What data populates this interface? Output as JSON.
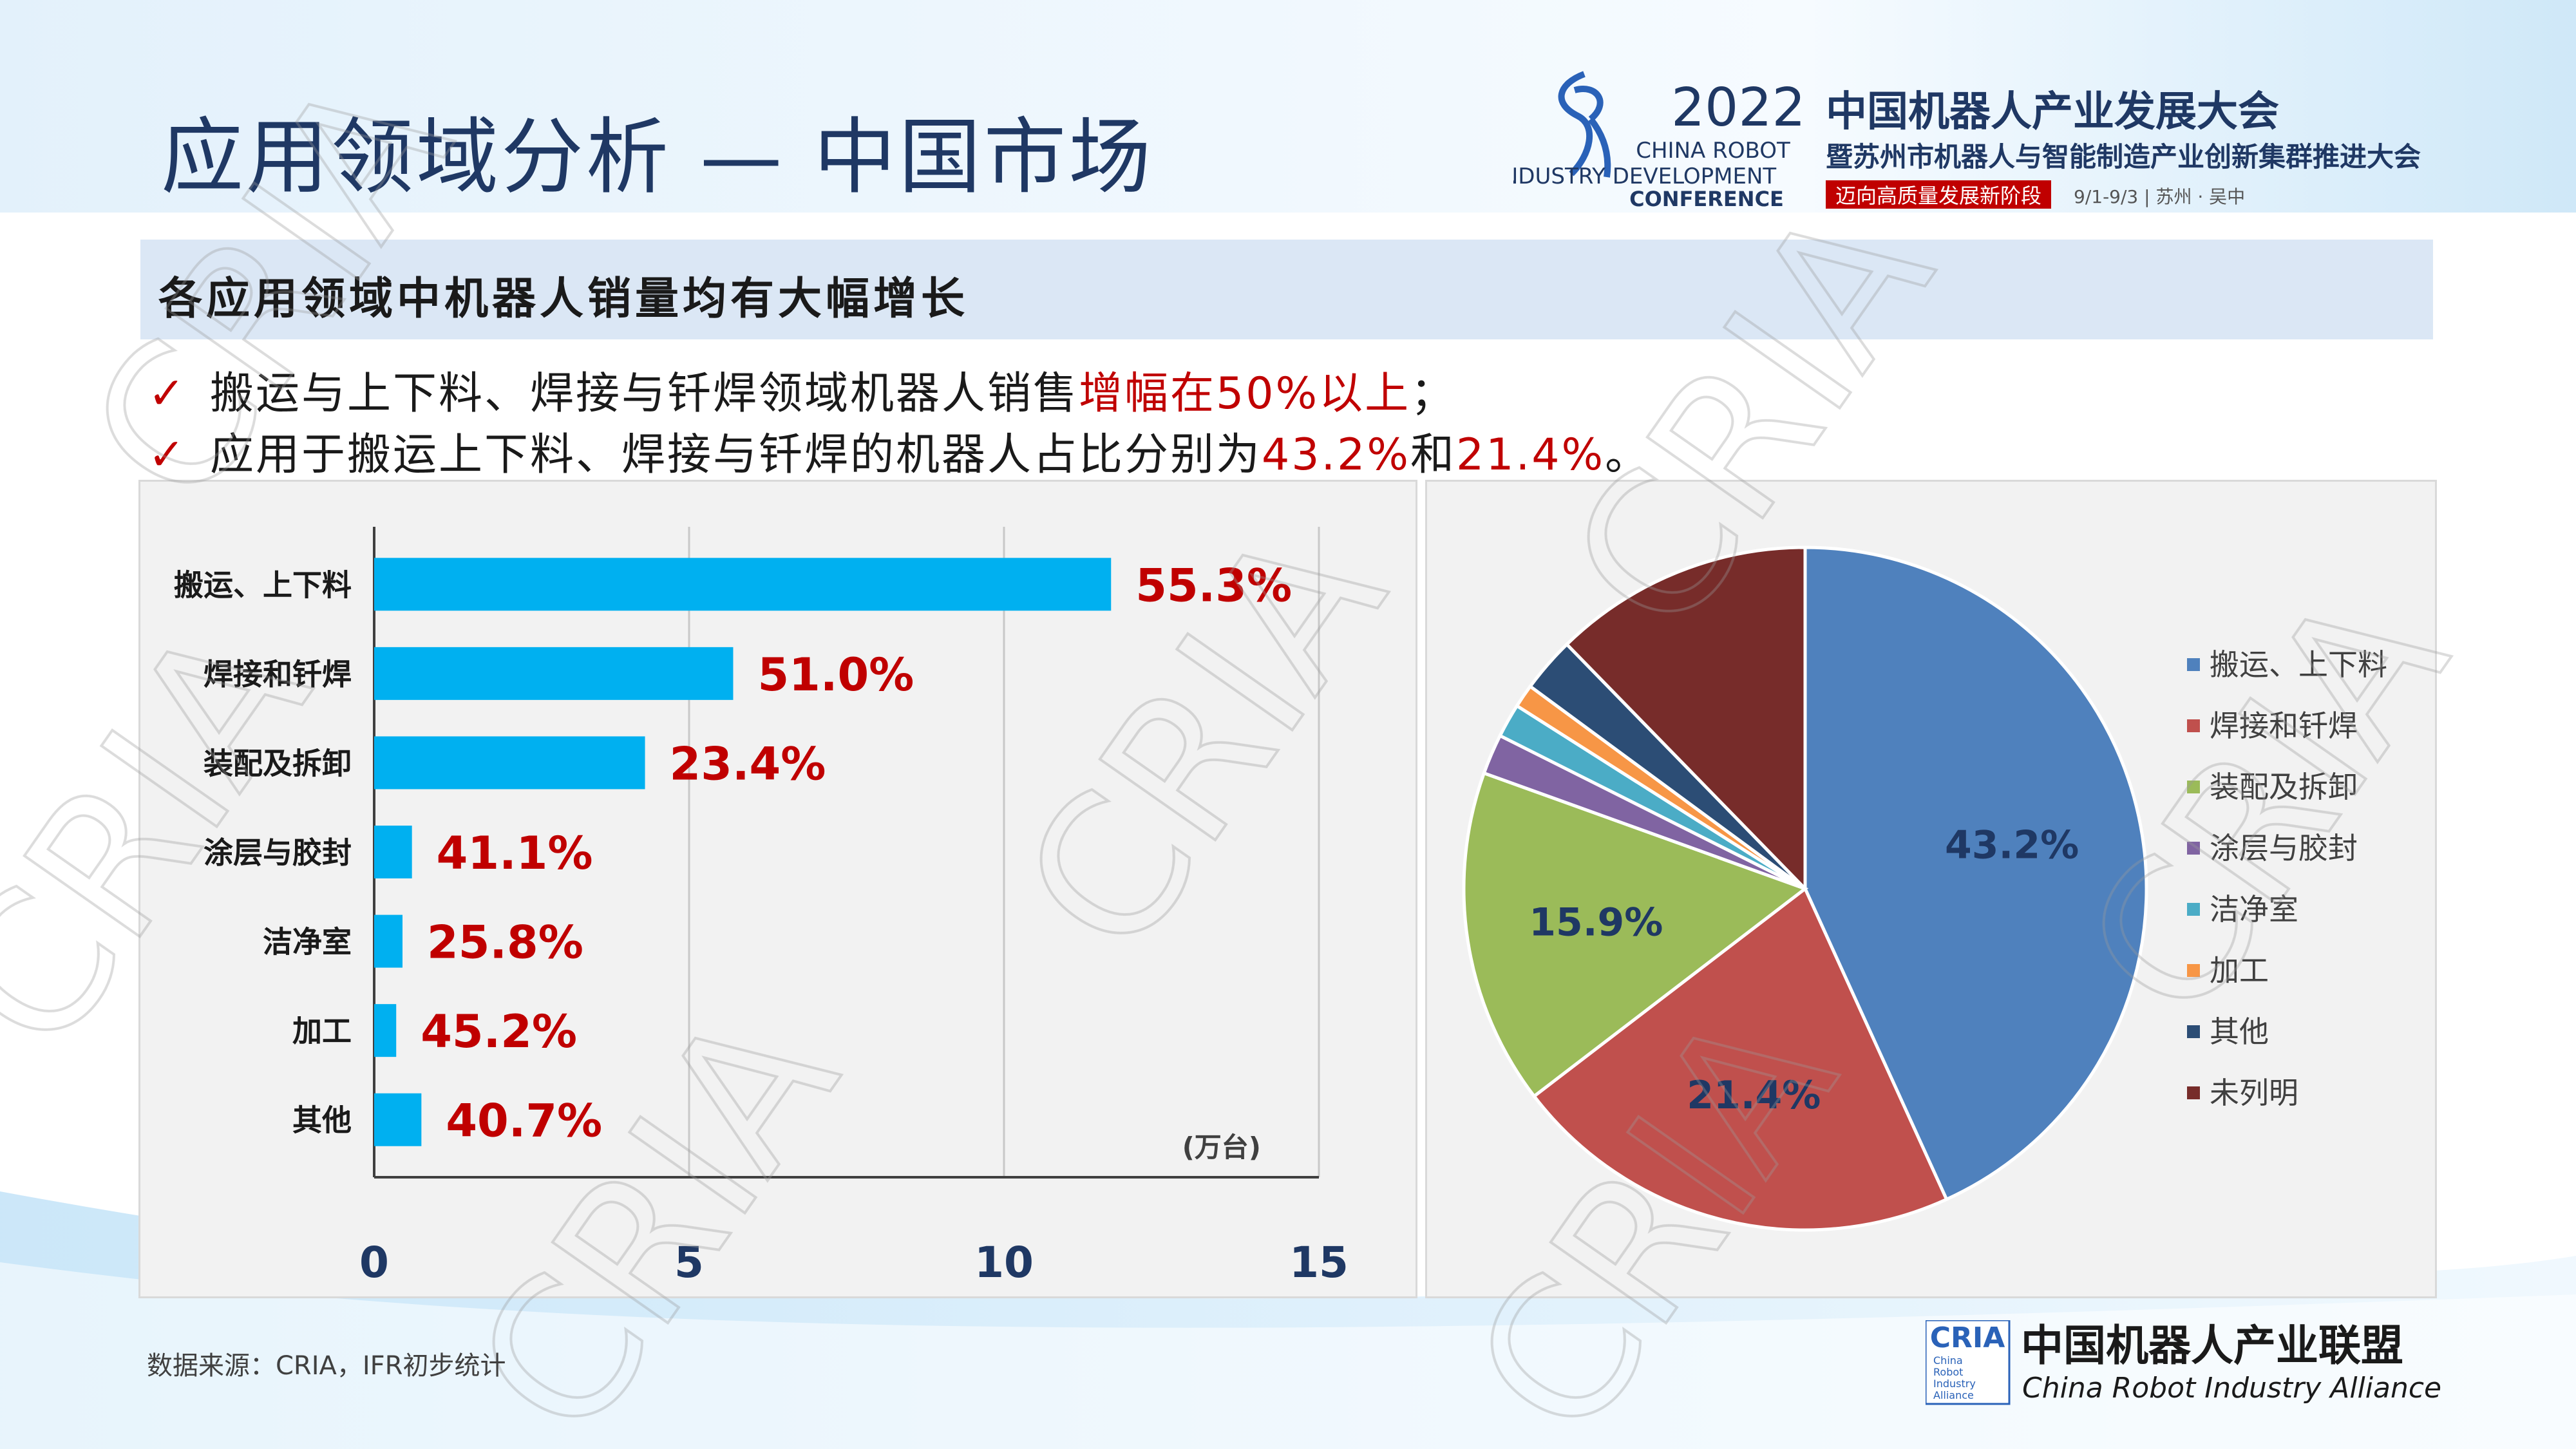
{
  "header": {
    "title": "应用领域分析 — 中国市场",
    "conference_year": "2022",
    "conference_en_1": "CHINA ROBOT",
    "conference_en_2": "INDUSTRY DEVELOPMENT",
    "conference_en_3": "CONFERENCE",
    "conference_cn_1": "中国机器人产业发展大会",
    "conference_cn_2": "暨苏州市机器人与智能制造产业创新集群推进大会",
    "conference_tagline": "迈向高质量发展新阶段",
    "conference_date": "9/1-9/3 | 苏州 · 吴中"
  },
  "subtitle": "各应用领域中机器人销量均有大幅增长",
  "bullets": [
    {
      "check": "✓",
      "text": "搬运与上下料、焊接与钎焊领域机器人销售",
      "highlight": "增幅在50%以上",
      "end": "；"
    },
    {
      "check": "✓",
      "text": "应用于搬运上下料、焊接与钎焊的机器人占比分别为",
      "highlight": "43.2%",
      "mid": "和",
      "highlight2": "21.4%",
      "end": "。"
    }
  ],
  "watermark": "CRIA",
  "colors": {
    "bar": "#00b0f0",
    "label_red": "#c00000",
    "title": "#1f3864"
  },
  "chart_data": [
    {
      "type": "bar",
      "orientation": "horizontal",
      "categories": [
        "搬运、上下料",
        "焊接和钎焊",
        "装配及拆卸",
        "涂层与胶封",
        "洁净室",
        "加工",
        "其他"
      ],
      "values": [
        11.7,
        5.7,
        4.3,
        0.6,
        0.45,
        0.35,
        0.75
      ],
      "data_labels": [
        "55.3%",
        "51.0%",
        "23.4%",
        "41.1%",
        "25.8%",
        "45.2%",
        "40.7%"
      ],
      "unit_label": "(万台)",
      "xlim": [
        0,
        15
      ],
      "xticks": [
        "0",
        "5",
        "10",
        "15"
      ],
      "grid": true
    },
    {
      "type": "pie",
      "labels": [
        "搬运、上下料",
        "焊接和钎焊",
        "装配及拆卸",
        "涂层与胶封",
        "洁净室",
        "加工",
        "其他",
        "未列明"
      ],
      "values": [
        43.2,
        21.4,
        15.9,
        1.9,
        1.6,
        1.1,
        2.6,
        12.3
      ],
      "data_labels": [
        "43.2%",
        "21.4%",
        "15.9%",
        "",
        "",
        "",
        "",
        ""
      ],
      "colors": [
        "#4f81bd",
        "#c0504d",
        "#9bbb59",
        "#8064a2",
        "#4bacc6",
        "#f79646",
        "#2c4d75",
        "#772c2a"
      ],
      "legend": "right"
    }
  ],
  "footer": {
    "source": "数据来源：CRIA，IFR初步统计",
    "alliance_abbr": "CRIA",
    "alliance_cn": "中国机器人产业联盟",
    "alliance_en": "China Robot Industry Alliance",
    "alliance_small": [
      "China",
      "Robot",
      "Industry",
      "Alliance"
    ]
  }
}
